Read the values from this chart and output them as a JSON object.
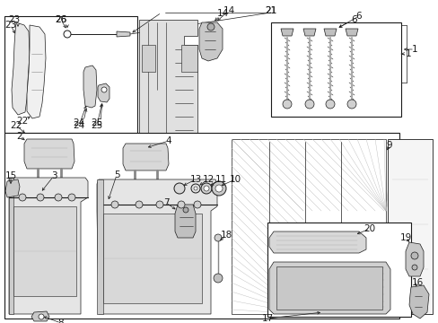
{
  "bg_color": "#ffffff",
  "line_color": "#1a1a1a",
  "font_size": 7.5,
  "figsize": [
    4.89,
    3.6
  ],
  "dpi": 100
}
